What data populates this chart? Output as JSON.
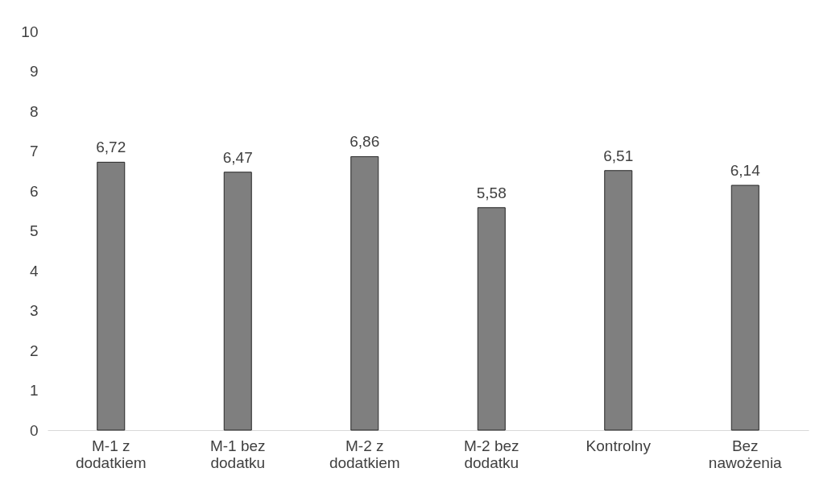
{
  "chart_data": {
    "type": "bar",
    "categories": [
      "M-1 z\ndodatkiem",
      "M-1 bez\ndodatku",
      "M-2 z\ndodatkiem",
      "M-2 bez\ndodatku",
      "Kontrolny",
      "Bez\nnawożenia"
    ],
    "values": [
      6.72,
      6.47,
      6.86,
      5.58,
      6.51,
      6.14
    ],
    "value_labels": [
      "6,72",
      "6,47",
      "6,86",
      "5,58",
      "6,51",
      "6,14"
    ],
    "color": "#7f7f7f",
    "ylim": [
      0,
      10
    ],
    "yticks": [
      0,
      1,
      2,
      3,
      4,
      5,
      6,
      7,
      8,
      9,
      10
    ],
    "grid": false
  }
}
